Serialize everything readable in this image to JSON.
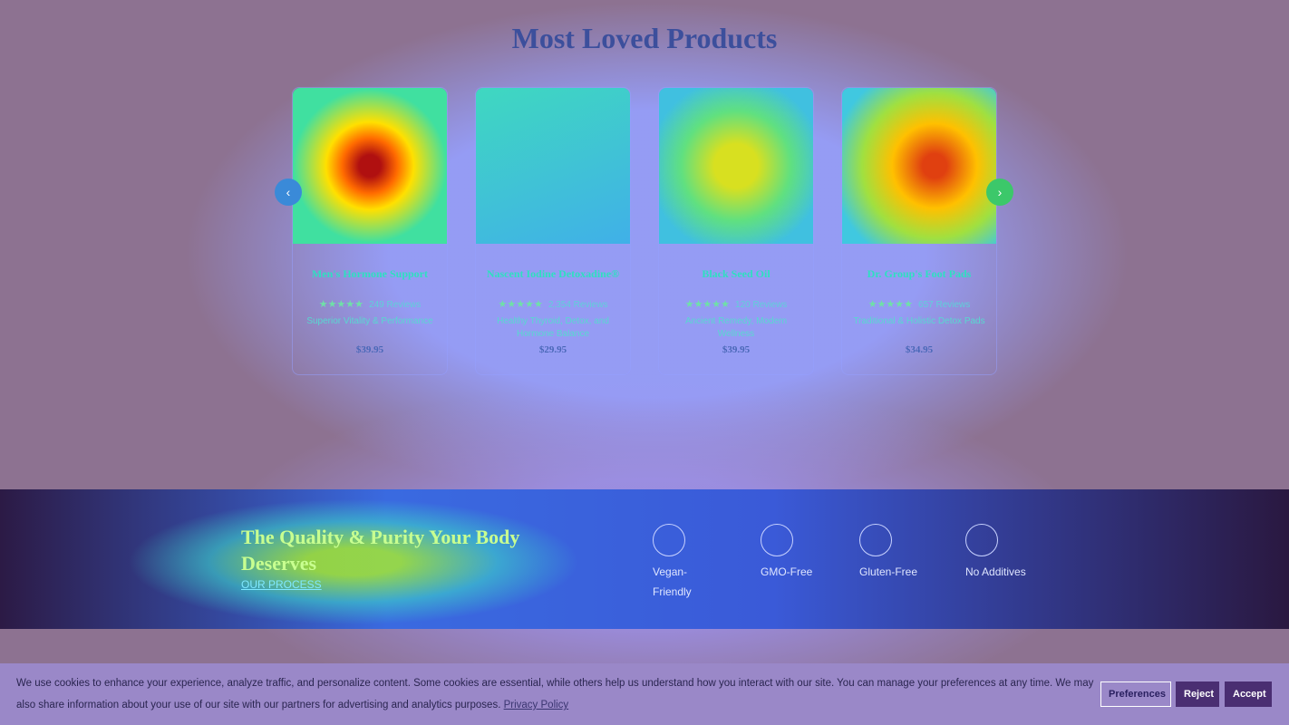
{
  "section_title": "Most Loved Products",
  "products": [
    {
      "name": "Men's Hormone Support",
      "reviews": "249 Reviews",
      "tagline": "Superior Vitality & Performance",
      "price": "$39.95"
    },
    {
      "name": "Nascent Iodine Detoxadine®",
      "reviews": "2,354 Reviews",
      "tagline": "Healthy Thyroid, Detox, and Hormone Balance",
      "price": "$29.95"
    },
    {
      "name": "Black Seed Oil",
      "reviews": "120 Reviews",
      "tagline": "Ancient Remedy, Modern Wellness",
      "price": "$39.95"
    },
    {
      "name": "Dr. Group's Foot Pads",
      "reviews": "657 Reviews",
      "tagline": "Traditional & Holistic Detox Pads",
      "price": "$34.95"
    }
  ],
  "banner": {
    "title": "The Quality & Purity Your Body Deserves",
    "link": "OUR PROCESS",
    "badges": [
      "Vegan-Friendly",
      "GMO-Free",
      "Gluten-Free",
      "No Additives"
    ]
  },
  "cookie": {
    "text": "We use cookies to enhance your experience, analyze traffic, and personalize content. Some cookies are essential, while others help us understand how you interact with our site. You can manage your preferences at any time. We may also share information about your use of our site with our partners for advertising and analytics purposes.",
    "link": "Privacy Policy",
    "buttons": [
      "Preferences",
      "Reject",
      "Accept"
    ]
  }
}
